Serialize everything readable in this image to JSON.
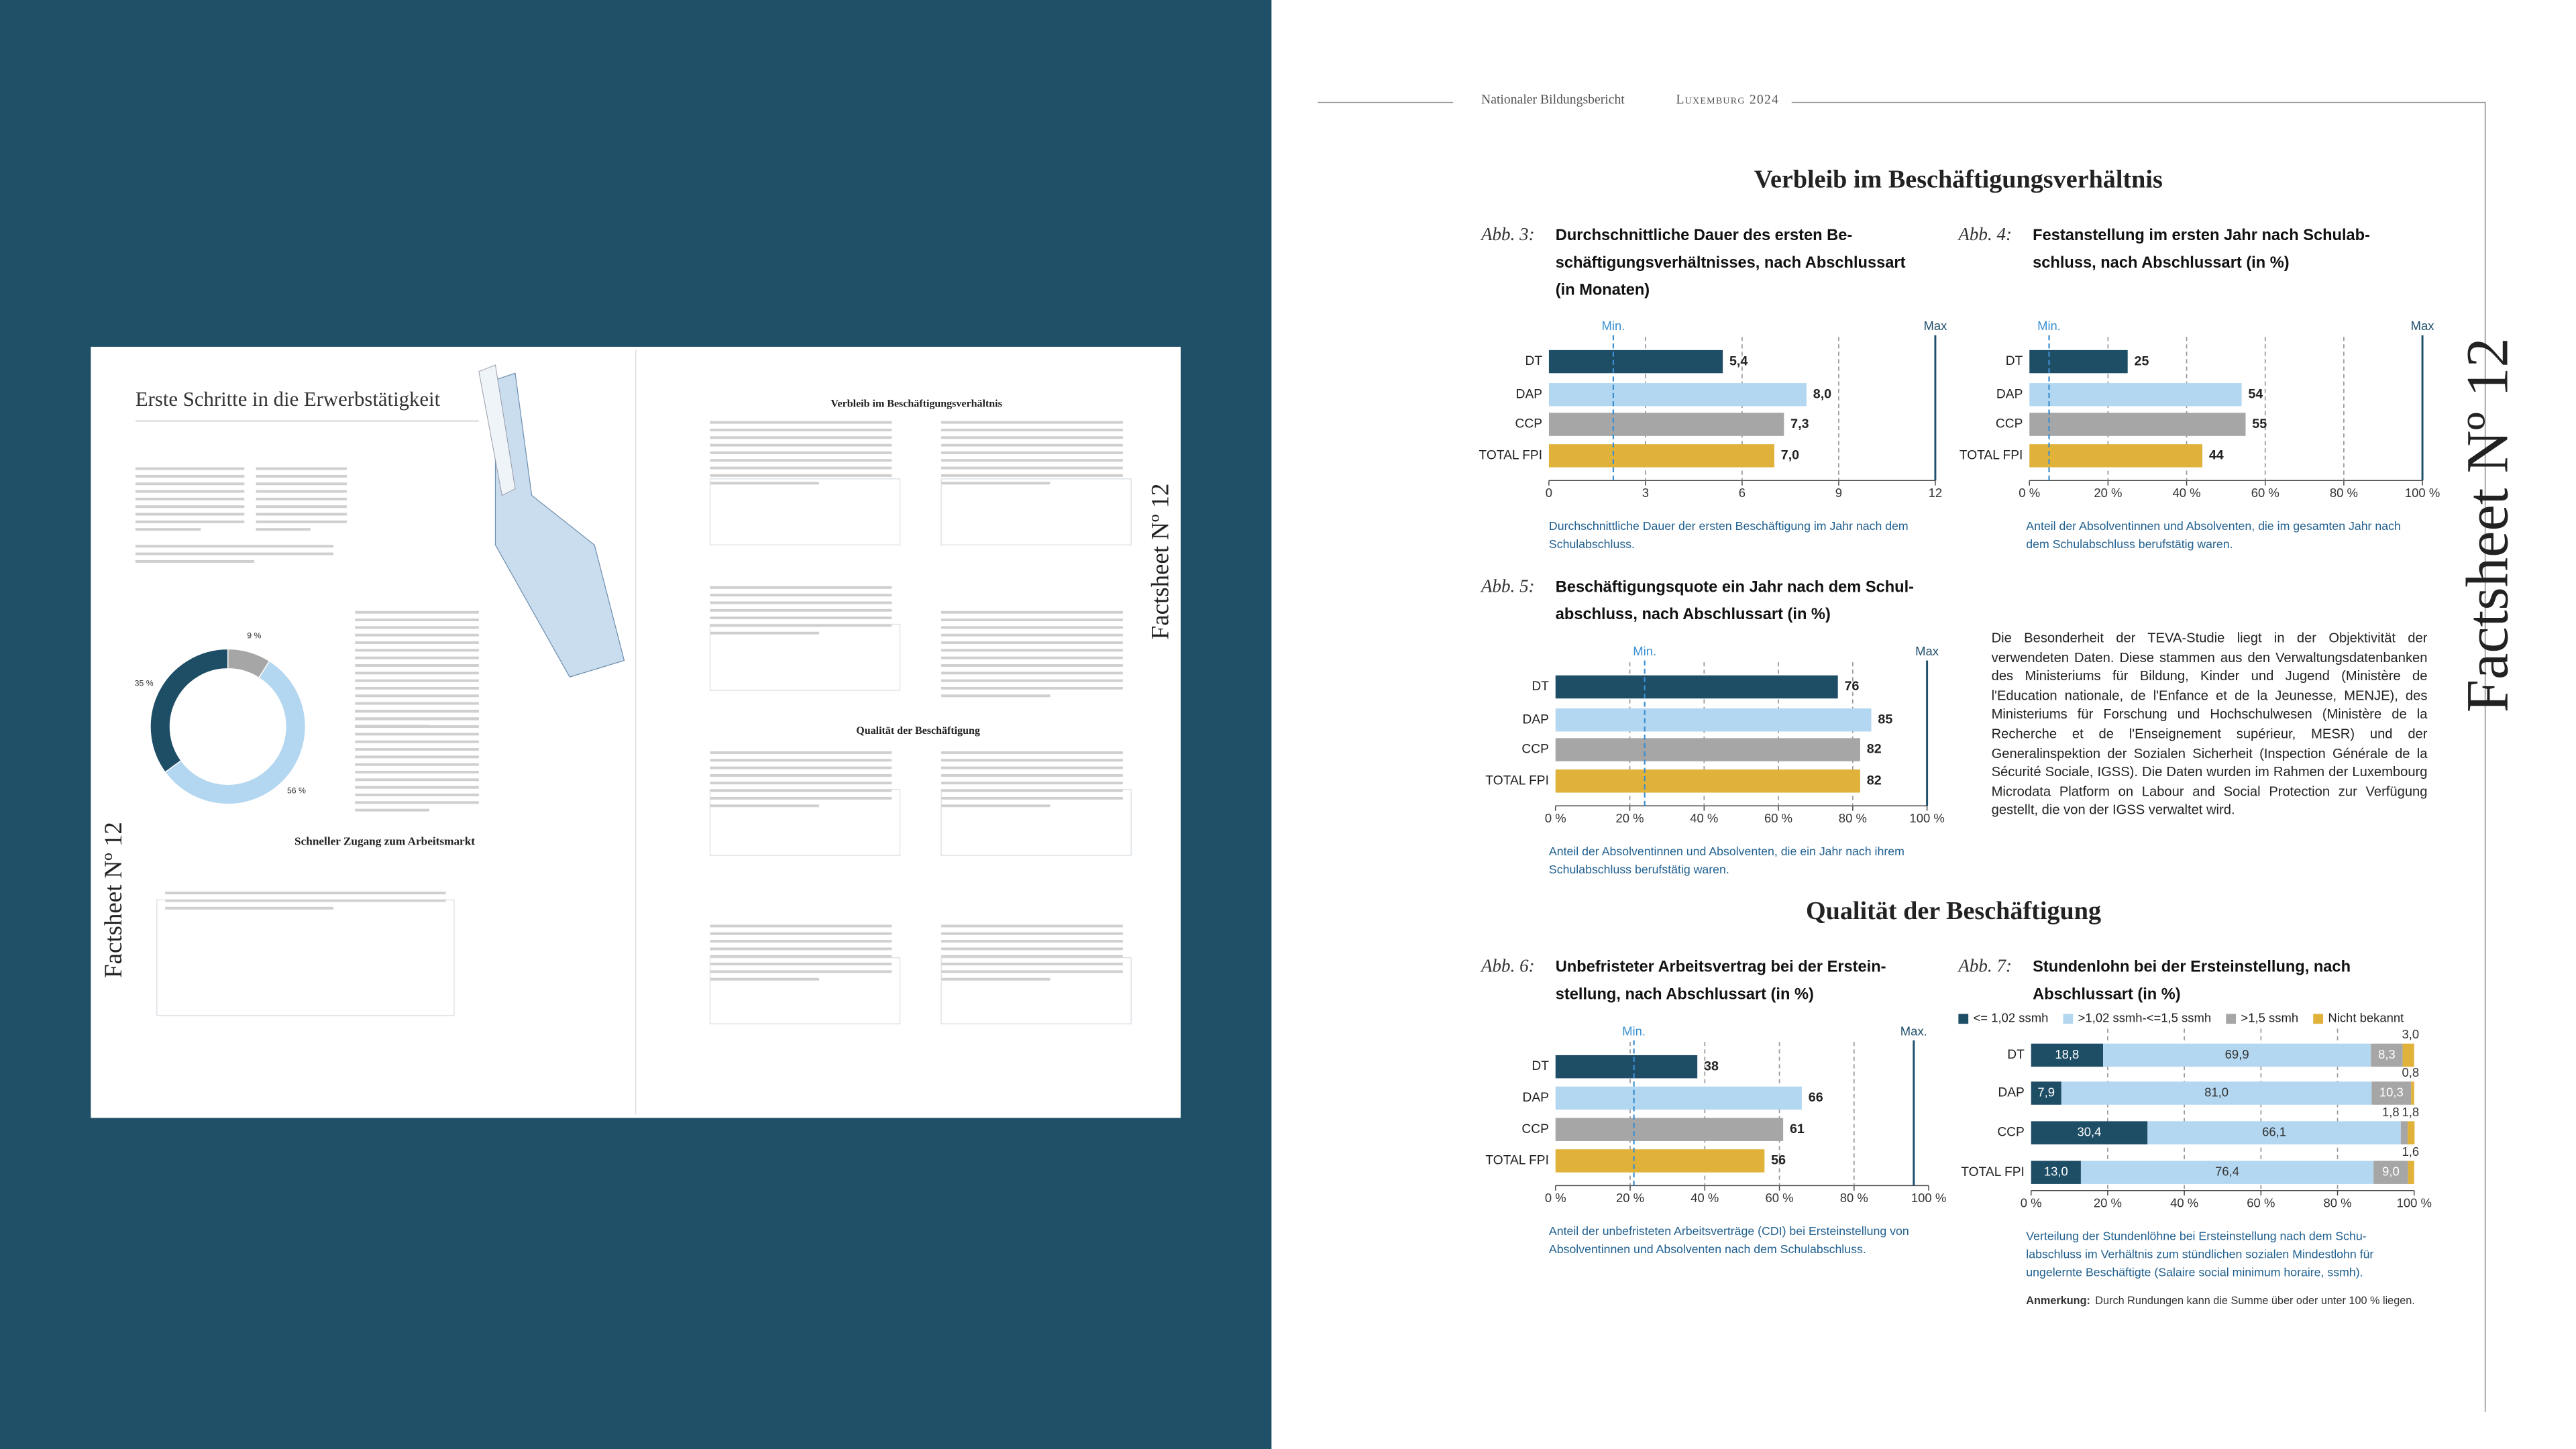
{
  "header": {
    "report": "Nationaler Bildungsbericht",
    "edition": "Luxemburg 2024"
  },
  "factsheet": "Factsheet Nº 12",
  "sections": [
    "Verbleib im Beschäftigungsverhältnis",
    "Qualität der Beschäftigung"
  ],
  "paragraph": "Die Besonderheit der TEVA-Studie liegt in der Objektivität der verwendeten Daten. Diese stammen aus den Verwaltungsdatenbanken des Ministeriums für Bildung, Kinder und Jugend (Ministère de l'Education nationale, de l'Enfance et de la Jeunesse, MENJE), des Ministeriums für Forschung und Hochschulwesen (Ministère de la Recherche et de l'Enseignement supérieur, MESR) und der Generalinspektion der Sozialen Sicherheit (Inspection Générale de la Sécurité Sociale, IGSS). Die Daten wurden im Rahmen der Luxembourg Microdata Platform on Labour and Social Protection zur Verfügung gestellt, die von der IGSS verwaltet wird.",
  "thumbnail": {
    "title": "Erste Schritte in die Erwerbstätigkeit",
    "section": "Schneller Zugang zum Arbeitsmarkt"
  },
  "chart_data": [
    {
      "type": "bar",
      "figure": "Abb. 3:",
      "title": [
        "Durchschnittliche Dauer des ersten Be-",
        "schäftigungsverhältnisses, nach Abschlussart",
        "(in Monaten)"
      ],
      "categories": [
        "DT",
        "DAP",
        "CCP",
        "TOTAL FPI"
      ],
      "values": [
        5.4,
        8.0,
        7.3,
        7.0
      ],
      "value_labels": [
        "5,4",
        "8,0",
        "7,3",
        "7,0"
      ],
      "colors": [
        "#1e4d66",
        "#b3d7f0",
        "#a6a6a6",
        "#e0b23a"
      ],
      "xlim": [
        0,
        12
      ],
      "xticks": [
        0,
        3,
        6,
        9,
        12
      ],
      "min": 2,
      "min_label": "Min.",
      "max": 12,
      "max_label": "Max",
      "caption": [
        "Durchschnittliche Dauer der ersten Beschäftigung im Jahr nach dem",
        "Schulabschluss."
      ]
    },
    {
      "type": "bar",
      "figure": "Abb. 4:",
      "title": [
        "Festanstellung im ersten Jahr nach Schulab-",
        "schluss, nach Abschlussart (in %)"
      ],
      "categories": [
        "DT",
        "DAP",
        "CCP",
        "TOTAL FPI"
      ],
      "values": [
        25,
        54,
        55,
        44
      ],
      "colors": [
        "#1e4d66",
        "#b3d7f0",
        "#a6a6a6",
        "#e0b23a"
      ],
      "xlim": [
        0,
        100
      ],
      "xticks": [
        {
          "value": 0,
          "label": "0 %"
        },
        {
          "value": 20,
          "label": "20 %"
        },
        {
          "value": 40,
          "label": "40 %"
        },
        {
          "value": 60,
          "label": "60 %"
        },
        {
          "value": 80,
          "label": "80 %"
        },
        {
          "value": 100,
          "label": "100 %"
        }
      ],
      "min": 5,
      "min_label": "Min.",
      "max": 100,
      "max_label": "Max",
      "caption": [
        "Anteil der Absolventinnen und Absolventen, die im gesamten Jahr nach",
        "dem Schulabschluss berufstätig waren."
      ]
    },
    {
      "type": "bar",
      "figure": "Abb. 5:",
      "title": [
        "Beschäftigungsquote ein Jahr nach dem Schul-",
        "abschluss, nach Abschlussart (in %)"
      ],
      "categories": [
        "DT",
        "DAP",
        "CCP",
        "TOTAL FPI"
      ],
      "values": [
        76,
        85,
        82,
        82
      ],
      "colors": [
        "#1e4d66",
        "#b3d7f0",
        "#a6a6a6",
        "#e0b23a"
      ],
      "xlim": [
        0,
        100
      ],
      "xticks": [
        {
          "value": 0,
          "label": "0 %"
        },
        {
          "value": 20,
          "label": "20 %"
        },
        {
          "value": 40,
          "label": "40 %"
        },
        {
          "value": 60,
          "label": "60 %"
        },
        {
          "value": 80,
          "label": "80 %"
        },
        {
          "value": 100,
          "label": "100 %"
        }
      ],
      "min": 24,
      "min_label": "Min.",
      "max": 100,
      "max_label": "Max",
      "caption": [
        "Anteil der Absolventinnen und Absolventen, die ein Jahr nach ihrem",
        "Schulabschluss berufstätig waren."
      ]
    },
    {
      "type": "bar",
      "figure": "Abb. 6:",
      "title": [
        "Unbefristeter Arbeitsvertrag bei der Erstein-",
        "stellung, nach Abschlussart (in %)"
      ],
      "categories": [
        "DT",
        "DAP",
        "CCP",
        "TOTAL FPI"
      ],
      "values": [
        38,
        66,
        61,
        56
      ],
      "colors": [
        "#1e4d66",
        "#b3d7f0",
        "#a6a6a6",
        "#e0b23a"
      ],
      "xlim": [
        0,
        100
      ],
      "xticks": [
        {
          "value": 0,
          "label": "0 %"
        },
        {
          "value": 20,
          "label": "20 %"
        },
        {
          "value": 40,
          "label": "40 %"
        },
        {
          "value": 60,
          "label": "60 %"
        },
        {
          "value": 80,
          "label": "80 %"
        },
        {
          "value": 100,
          "label": "100 %"
        }
      ],
      "min": 21,
      "min_label": "Min.",
      "max": 96,
      "max_label": "Max.",
      "caption": [
        "Anteil der unbefristeten Arbeitsverträge (CDI) bei Ersteinstellung von",
        "Absolventinnen und Absolventen nach dem Schulabschluss."
      ]
    },
    {
      "type": "stacked_bar",
      "figure": "Abb. 7:",
      "title": [
        "Stundenlohn bei der Ersteinstellung, nach",
        "Abschlussart (in %)"
      ],
      "categories": [
        "DT",
        "DAP",
        "CCP",
        "TOTAL FPI"
      ],
      "series": [
        {
          "name": "<= 1,02 ssmh",
          "color": "#1e4d66",
          "values": [
            18.8,
            7.9,
            30.4,
            13.0
          ],
          "value_labels": [
            "18,8",
            "7,9",
            "30,4",
            "13,0"
          ]
        },
        {
          "name": ">1,02 ssmh-<=1,5 ssmh",
          "color": "#b3d7f0",
          "values": [
            69.9,
            81.0,
            66.1,
            76.4
          ],
          "value_labels": [
            "69,9",
            "81,0",
            "66,1",
            "76,4"
          ]
        },
        {
          "name": ">1,5 ssmh",
          "color": "#a6a6a6",
          "values": [
            8.3,
            10.3,
            1.8,
            9.0
          ],
          "value_labels": [
            "8,3",
            "10,3",
            "1,8",
            "9,0"
          ]
        },
        {
          "name": "Nicht bekannt",
          "color": "#e0b23a",
          "values": [
            3.0,
            0.8,
            1.8,
            1.6
          ],
          "value_labels": [
            "3,0",
            "0,8",
            "1,8",
            "1,6"
          ]
        }
      ],
      "xlim": [
        0,
        100
      ],
      "xticks": [
        {
          "value": 0,
          "label": "0 %"
        },
        {
          "value": 20,
          "label": "20 %"
        },
        {
          "value": 40,
          "label": "40 %"
        },
        {
          "value": 60,
          "label": "60 %"
        },
        {
          "value": 80,
          "label": "80 %"
        },
        {
          "value": 100,
          "label": "100 %"
        }
      ],
      "caption": [
        "Verteilung der Stundenlöhne bei Ersteinstellung nach dem Schu-",
        "labschluss im Verhältnis zum stündlichen sozialen Mindestlohn für",
        "ungelernte Beschäftigte (Salaire social minimum horaire, ssmh)."
      ],
      "note_label": "Anmerkung:",
      "note": "Durch Rundungen kann die Summe über oder unter 100 % liegen."
    },
    {
      "type": "pie",
      "values": [
        9,
        56,
        35
      ],
      "value_labels": [
        "9 %",
        "56 %",
        "35 %"
      ],
      "colors": [
        "#a6a6a6",
        "#b3d7f0",
        "#1e4d66"
      ]
    }
  ]
}
